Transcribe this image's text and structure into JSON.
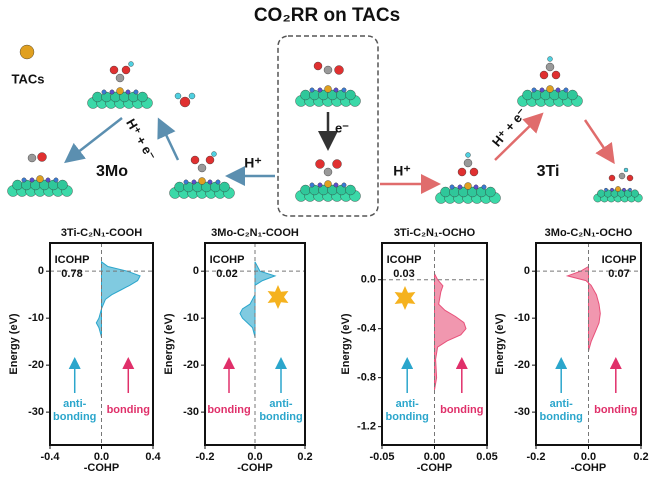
{
  "diagram": {
    "title": "CO₂RR on TACs",
    "legend_label": "TACs",
    "left_catalyst": "3Mo",
    "right_catalyst": "3Ti",
    "left_step_1": "H⁺ + e⁻",
    "left_step_2": "H⁺",
    "center_step": "e⁻",
    "right_step_1": "H⁺",
    "right_step_2": "H⁺ + e⁻"
  },
  "chart_data": [
    {
      "type": "area",
      "title": "3Ti-C₂N₁-COOH",
      "xlabel": "-COHP",
      "ylabel": "Energy (eV)",
      "color": "#2ba6cc",
      "energy": [
        2,
        1,
        0,
        -1,
        -2,
        -3,
        -4,
        -5,
        -6,
        -8,
        -10,
        -11,
        -12,
        -14
      ],
      "values": [
        0,
        0.05,
        0.2,
        0.3,
        0.28,
        0.22,
        0.15,
        0.08,
        0.03,
        0,
        -0.02,
        -0.04,
        -0.02,
        0
      ],
      "xlim": [
        -0.4,
        0.4
      ],
      "ylim": [
        -37,
        6
      ],
      "xticks": [
        -0.4,
        {
          "value": 0,
          "label": "0.0"
        },
        0.4
      ],
      "yticks": [
        0,
        -10,
        -20,
        -30
      ],
      "annotation": "ICOHP",
      "icohp": 0.78,
      "antibonding_label": [
        "anti-",
        "bonding"
      ],
      "bonding_label": "bonding"
    },
    {
      "type": "area",
      "title": "3Mo-C₂N₁-COOH",
      "xlabel": "-COHP",
      "ylabel": "Energy (eV)",
      "color": "#2ba6cc",
      "energy": [
        2,
        0,
        -1,
        -2,
        -3,
        -5,
        -7,
        -8,
        -9,
        -10,
        -11,
        -12,
        -14
      ],
      "values": [
        0,
        0.02,
        0.08,
        0.03,
        0,
        0,
        -0.02,
        -0.05,
        -0.06,
        -0.05,
        -0.03,
        -0.01,
        0
      ],
      "xlim": [
        -0.2,
        0.2
      ],
      "ylim": [
        -37,
        6
      ],
      "xticks": [
        -0.2,
        {
          "value": 0,
          "label": "0.0"
        },
        0.2
      ],
      "yticks": [
        0,
        -10,
        -20,
        -30
      ],
      "annotation": "ICOHP",
      "icohp": 0.02,
      "antibonding_label": [
        "anti-",
        "bonding"
      ],
      "bonding_label": "bonding"
    },
    {
      "type": "area",
      "title": "3Ti-C₂N₁-OCHO",
      "xlabel": "-COHP",
      "ylabel": "Energy (eV)",
      "color": "#e8517a",
      "energy": [
        0.05,
        0,
        -0.05,
        -0.1,
        -0.2,
        -0.25,
        -0.3,
        -0.35,
        -0.4,
        -0.45,
        -0.5,
        -0.55,
        -0.65,
        -0.8,
        -0.9
      ],
      "values": [
        0,
        0.003,
        0.008,
        0.006,
        0.004,
        0.01,
        0.02,
        0.028,
        0.03,
        0.025,
        0.012,
        0.003,
        0.001,
        0.002,
        0
      ],
      "xlim": [
        -0.05,
        0.05
      ],
      "ylim": [
        -1.35,
        0.3
      ],
      "xticks": [
        {
          "value": -0.05,
          "label": "-0.05"
        },
        {
          "value": 0,
          "label": "0.00"
        },
        {
          "value": 0.05,
          "label": "0.05"
        }
      ],
      "yticks": [
        {
          "value": 0,
          "label": "0.0"
        },
        -0.4,
        -0.8,
        -1.2
      ],
      "annotation": "ICOHP",
      "icohp": 0.03,
      "antibonding_label": [
        "anti-",
        "bonding"
      ],
      "bonding_label": "bonding"
    },
    {
      "type": "area",
      "title": "3Mo-C₂N₁-OCHO",
      "xlabel": "-COHP",
      "ylabel": "Energy (eV)",
      "color": "#e8517a",
      "energy": [
        1,
        0,
        -1,
        -2,
        -3,
        -5,
        -7,
        -9,
        -11,
        -13,
        -15,
        -17
      ],
      "values": [
        0,
        -0.03,
        -0.08,
        -0.01,
        0.01,
        0.03,
        0.04,
        0.045,
        0.04,
        0.025,
        0.01,
        0
      ],
      "xlim": [
        -0.2,
        0.2
      ],
      "ylim": [
        -37,
        6
      ],
      "xticks": [
        -0.2,
        {
          "value": 0,
          "label": "0.0"
        },
        0.2
      ],
      "yticks": [
        0,
        -10,
        -20,
        -30
      ],
      "annotation": "ICOHP",
      "icohp": 0.07,
      "antibonding_label": [
        "anti-",
        "bonding"
      ],
      "bonding_label": "bonding"
    }
  ]
}
